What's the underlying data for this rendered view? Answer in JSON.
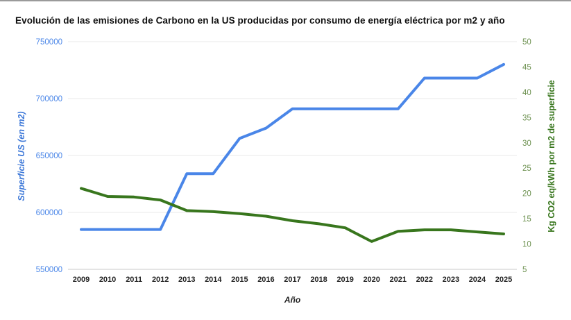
{
  "page": {
    "background": "#ffffff",
    "top_border_color": "#9a9a9a"
  },
  "chart": {
    "title": "Evolución de las emisiones de Carbono en la US producidas por consumo de energía eléctrica por m2 y año",
    "x_axis_title": "Año",
    "left_axis_title": "Superficie US (en m2)",
    "right_axis_title": "Kg CO2 eq/kWh por m2 de superficie"
  },
  "chart_data": {
    "type": "line",
    "title": "Evolución de las emisiones de Carbono en la US producidas por consumo de energía eléctrica por m2 y año",
    "xlabel": "Año",
    "categories": [
      2009,
      2010,
      2011,
      2012,
      2013,
      2014,
      2015,
      2016,
      2017,
      2018,
      2019,
      2020,
      2021,
      2022,
      2023,
      2024,
      2025
    ],
    "series": [
      {
        "name": "Superficie US (en m2)",
        "axis": "left",
        "color": "#4a86e8",
        "values": [
          585000,
          585000,
          585000,
          585000,
          634000,
          634000,
          665000,
          674000,
          691000,
          691000,
          691000,
          691000,
          691000,
          718000,
          718000,
          718000,
          730000
        ]
      },
      {
        "name": "Kg CO2 eq/kWh por m2 de superficie",
        "axis": "right",
        "color": "#38761d",
        "values": [
          21,
          19.4,
          19.3,
          18.7,
          16.6,
          16.4,
          16,
          15.5,
          14.6,
          14,
          13.2,
          10.5,
          12.5,
          12.8,
          12.8,
          12.4,
          12
        ]
      }
    ],
    "left_axis": {
      "title": "Superficie US (en m2)",
      "min": 550000,
      "max": 750000,
      "ticks": [
        550000,
        600000,
        650000,
        700000,
        750000
      ],
      "label_color": "#4a86e8"
    },
    "right_axis": {
      "title": "Kg CO2 eq/kWh por m2 de superficie",
      "min": 5,
      "max": 50,
      "ticks": [
        5,
        10,
        15,
        20,
        25,
        30,
        35,
        40,
        45,
        50
      ],
      "label_color": "#6d9150"
    },
    "x_tick_color": "#222222",
    "gridline_color": "#e8e8e8",
    "baseline_color": "#c9c9c9",
    "grid": true,
    "legend": "none"
  }
}
